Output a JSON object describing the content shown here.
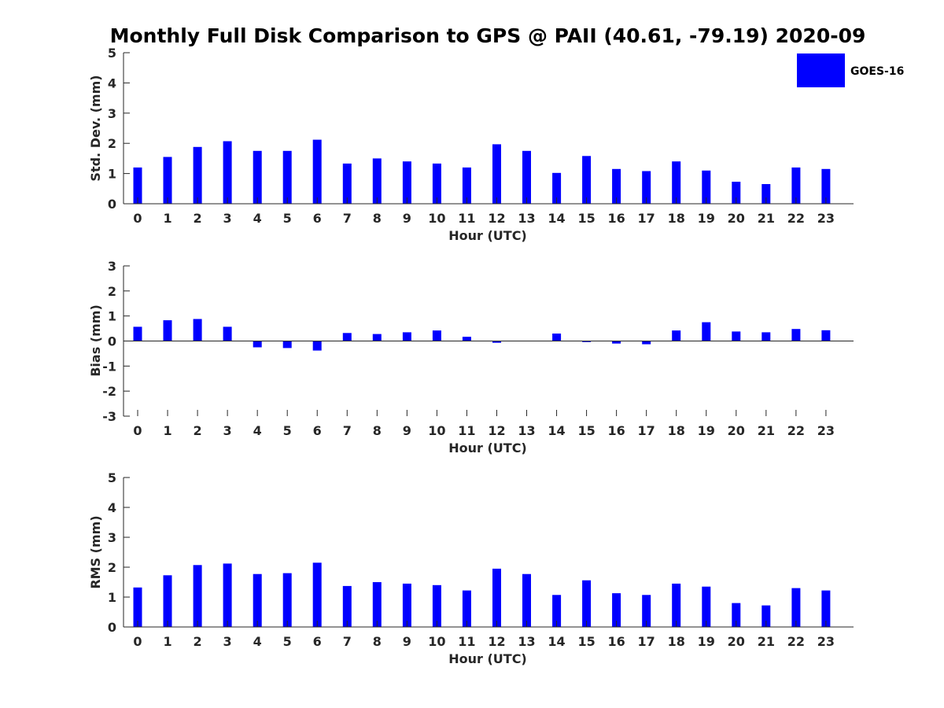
{
  "title": "Monthly Full Disk Comparison to GPS @ PAII (40.61, -79.19) 2020-09",
  "legend": {
    "label": "GOES-16",
    "color": "#0000ff"
  },
  "chart_data": [
    {
      "type": "bar",
      "name": "std-dev",
      "categories": [
        "0",
        "1",
        "2",
        "3",
        "4",
        "5",
        "6",
        "7",
        "8",
        "9",
        "10",
        "11",
        "12",
        "13",
        "14",
        "15",
        "16",
        "17",
        "18",
        "19",
        "20",
        "21",
        "22",
        "23"
      ],
      "values": [
        1.2,
        1.55,
        1.88,
        2.07,
        1.75,
        1.75,
        2.12,
        1.33,
        1.5,
        1.4,
        1.33,
        1.2,
        1.97,
        1.75,
        1.02,
        1.58,
        1.15,
        1.08,
        1.4,
        1.1,
        0.73,
        0.65,
        1.2,
        1.15
      ],
      "xlabel": "Hour (UTC)",
      "ylabel": "Std. Dev. (mm)",
      "ylim": [
        0,
        5
      ],
      "yticks": [
        "0",
        "1",
        "2",
        "3",
        "4",
        "5"
      ],
      "series": [
        {
          "name": "GOES-16",
          "color": "#0000ff"
        }
      ]
    },
    {
      "type": "bar",
      "name": "bias",
      "categories": [
        "0",
        "1",
        "2",
        "3",
        "4",
        "5",
        "6",
        "7",
        "8",
        "9",
        "10",
        "11",
        "12",
        "13",
        "14",
        "15",
        "16",
        "17",
        "18",
        "19",
        "20",
        "21",
        "22",
        "23"
      ],
      "values": [
        0.57,
        0.83,
        0.88,
        0.57,
        -0.25,
        -0.28,
        -0.38,
        0.32,
        0.28,
        0.35,
        0.42,
        0.17,
        -0.07,
        0.0,
        0.3,
        -0.04,
        -0.1,
        -0.13,
        0.42,
        0.75,
        0.38,
        0.35,
        0.48,
        0.43
      ],
      "xlabel": "Hour (UTC)",
      "ylabel": "Bias (mm)",
      "ylim": [
        -3,
        3
      ],
      "yticks": [
        "-3",
        "-2",
        "-1",
        "0",
        "1",
        "2",
        "3"
      ],
      "series": [
        {
          "name": "GOES-16",
          "color": "#0000ff"
        }
      ]
    },
    {
      "type": "bar",
      "name": "rms",
      "categories": [
        "0",
        "1",
        "2",
        "3",
        "4",
        "5",
        "6",
        "7",
        "8",
        "9",
        "10",
        "11",
        "12",
        "13",
        "14",
        "15",
        "16",
        "17",
        "18",
        "19",
        "20",
        "21",
        "22",
        "23"
      ],
      "values": [
        1.32,
        1.73,
        2.07,
        2.12,
        1.77,
        1.8,
        2.15,
        1.37,
        1.5,
        1.45,
        1.4,
        1.22,
        1.95,
        1.77,
        1.07,
        1.56,
        1.13,
        1.07,
        1.45,
        1.35,
        0.8,
        0.72,
        1.3,
        1.22
      ],
      "xlabel": "Hour (UTC)",
      "ylabel": "RMS (mm)",
      "ylim": [
        0,
        5
      ],
      "yticks": [
        "0",
        "1",
        "2",
        "3",
        "4",
        "5"
      ],
      "series": [
        {
          "name": "GOES-16",
          "color": "#0000ff"
        }
      ]
    }
  ]
}
